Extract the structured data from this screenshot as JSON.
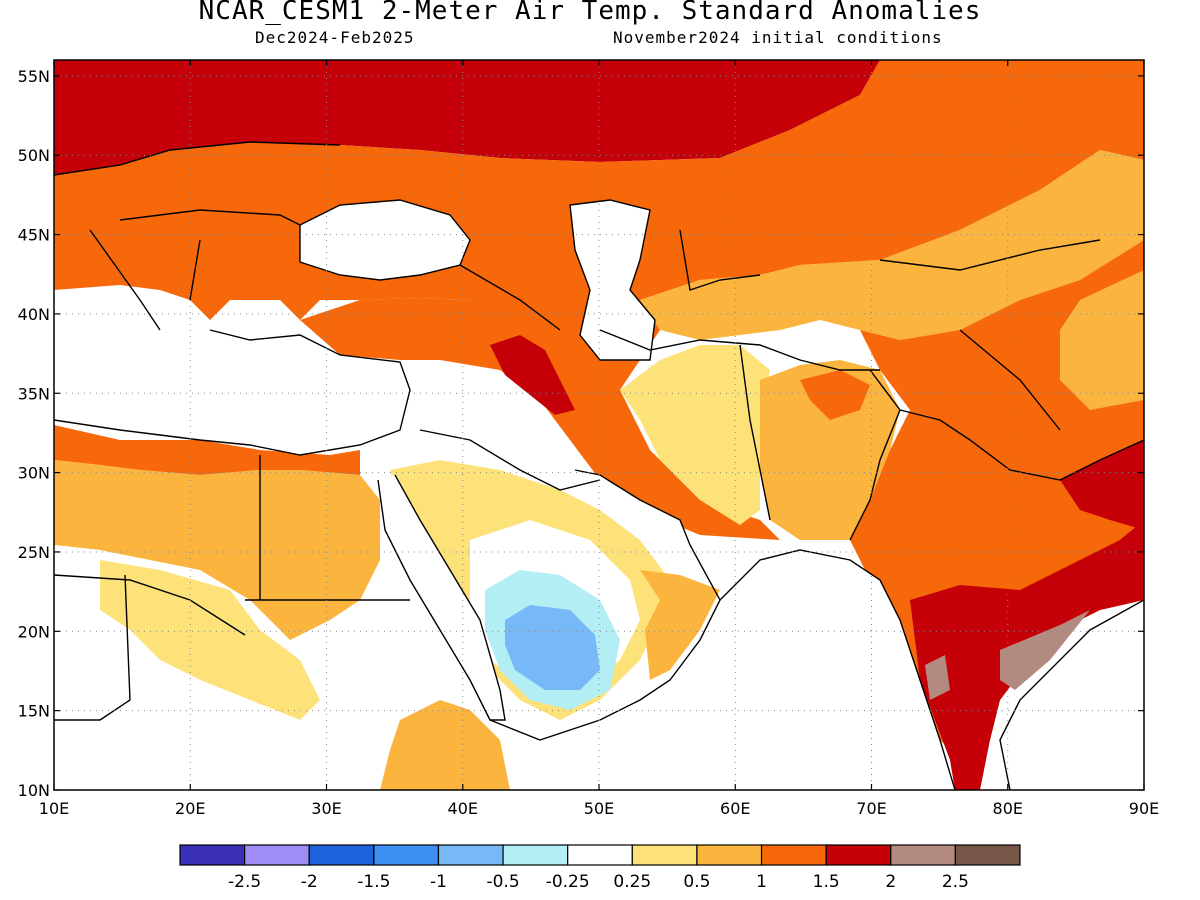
{
  "title": "NCAR_CESM1 2-Meter Air Temp. Standard Anomalies",
  "subtitle_left": "Dec2024-Feb2025",
  "subtitle_right": "November2024 initial conditions",
  "map": {
    "lon_range": [
      10,
      90
    ],
    "lat_range": [
      10,
      56
    ],
    "lat_ticks": [
      {
        "value": 55,
        "label": "55N"
      },
      {
        "value": 50,
        "label": "50N"
      },
      {
        "value": 45,
        "label": "45N"
      },
      {
        "value": 40,
        "label": "40N"
      },
      {
        "value": 35,
        "label": "35N"
      },
      {
        "value": 30,
        "label": "30N"
      },
      {
        "value": 25,
        "label": "25N"
      },
      {
        "value": 20,
        "label": "20N"
      },
      {
        "value": 15,
        "label": "15N"
      },
      {
        "value": 10,
        "label": "10N"
      }
    ],
    "lon_ticks": [
      {
        "value": 10,
        "label": "10E"
      },
      {
        "value": 20,
        "label": "20E"
      },
      {
        "value": 30,
        "label": "30E"
      },
      {
        "value": 40,
        "label": "40E"
      },
      {
        "value": 50,
        "label": "50E"
      },
      {
        "value": 60,
        "label": "60E"
      },
      {
        "value": 70,
        "label": "70E"
      },
      {
        "value": 80,
        "label": "80E"
      },
      {
        "value": 90,
        "label": "90E"
      }
    ],
    "gridlines": "dotted"
  },
  "colorbar": {
    "colors": [
      "#3a2fb7",
      "#9f8cf5",
      "#1f62de",
      "#3d8ff0",
      "#77b8f7",
      "#b3eef5",
      "#ffffff",
      "#fde27a",
      "#fbb43e",
      "#f7680a",
      "#c50008",
      "#b38a80",
      "#785648"
    ],
    "labels": [
      "-2.5",
      "-2",
      "-1.5",
      "-1",
      "-0.5",
      "-0.25",
      "0.25",
      "0.5",
      "1",
      "1.5",
      "2",
      "2.5"
    ]
  }
}
